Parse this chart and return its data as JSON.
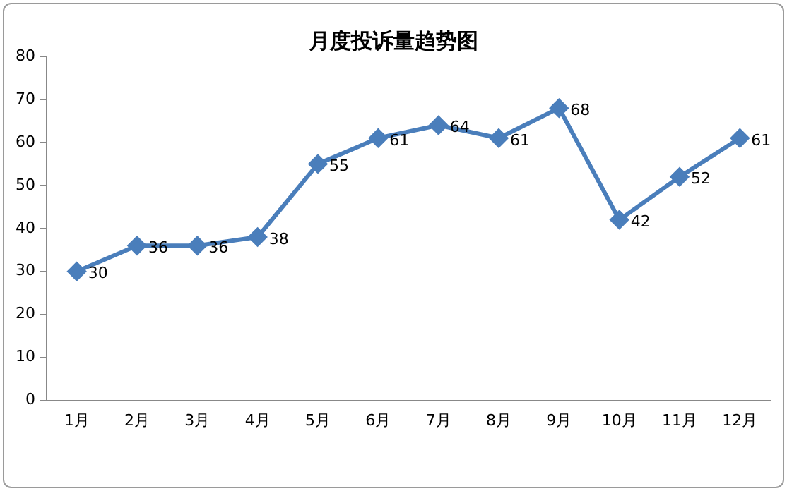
{
  "chart_data": {
    "type": "line",
    "title": "月度投诉量趋势图",
    "categories": [
      "1月",
      "2月",
      "3月",
      "4月",
      "5月",
      "6月",
      "7月",
      "8月",
      "9月",
      "10月",
      "11月",
      "12月"
    ],
    "values": [
      30,
      36,
      36,
      38,
      55,
      61,
      64,
      61,
      68,
      42,
      52,
      61
    ],
    "color": "#4a7ebb",
    "ylim": [
      0,
      80
    ],
    "yticks": [
      0,
      10,
      20,
      30,
      40,
      50,
      60,
      70,
      80
    ],
    "grid": false,
    "legend": false,
    "marker": "diamond",
    "line_style": "solid",
    "data_labels": true
  }
}
